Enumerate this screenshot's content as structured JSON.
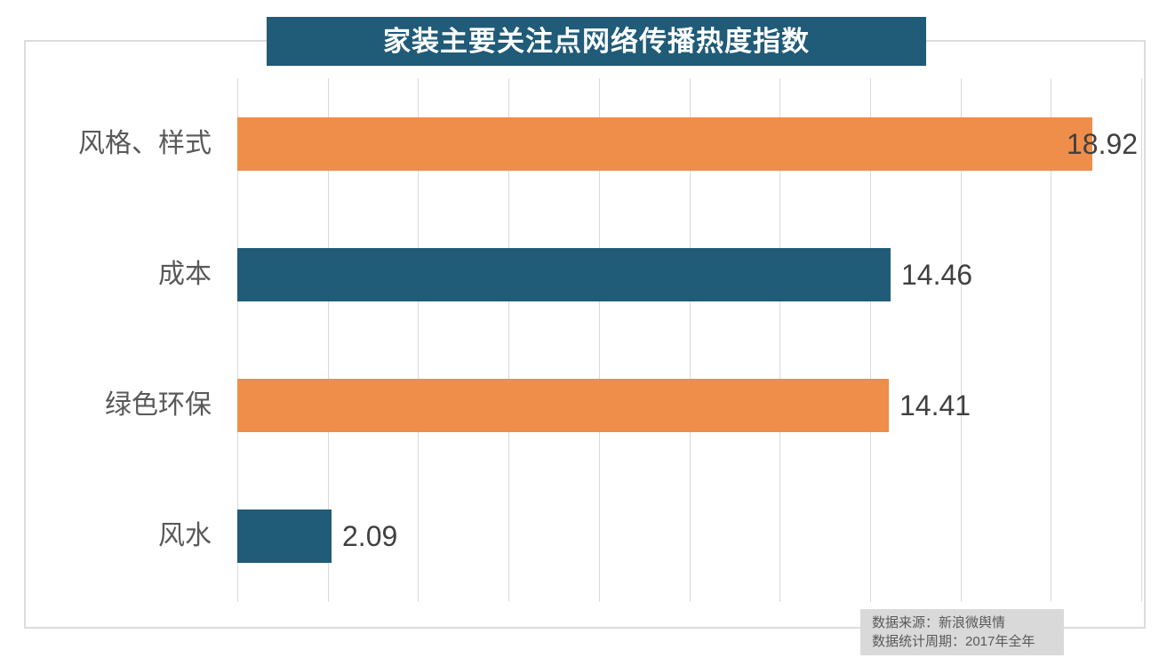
{
  "colors": {
    "accent_orange": "#EF8D4A",
    "accent_teal": "#205B78",
    "gridline": "#D9D9D9",
    "chart_border": "#DCDCDC",
    "category_label": "#595959",
    "value_label": "#404040",
    "source_bg": "#D9D9D9",
    "source_text": "#595959",
    "title_text": "#FFFFFF"
  },
  "chart_data": {
    "type": "bar",
    "orientation": "horizontal",
    "title": "家装主要关注点网络传播热度指数",
    "categories": [
      "风格、样式",
      "成本",
      "绿色环保",
      "风水"
    ],
    "values": [
      18.92,
      14.46,
      14.41,
      2.09
    ],
    "value_labels": [
      "18.92",
      "14.46",
      "14.41",
      "2.09"
    ],
    "bar_colors": [
      "#EF8D4A",
      "#205B78",
      "#EF8D4A",
      "#205B78"
    ],
    "xlim": [
      0,
      20
    ],
    "gridline_interval": 2,
    "grid": true,
    "axis_tick_labels_shown": false,
    "legend": "none",
    "source_note": {
      "line1": "数据来源：新浪微舆情",
      "line2": "数据统计周期：2017年全年"
    }
  }
}
